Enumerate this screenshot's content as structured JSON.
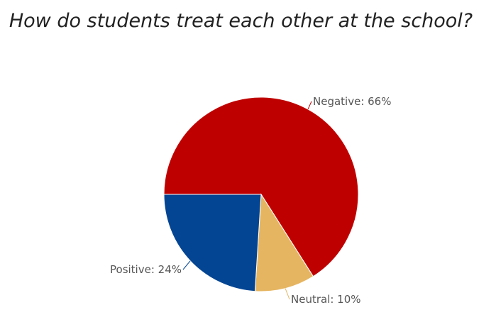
{
  "chart_data": {
    "type": "pie",
    "title": "How do students treat each other at the school?",
    "slices": [
      {
        "label": "Negative",
        "value": 66,
        "display": "Negative: 66%",
        "color": "#bf0000"
      },
      {
        "label": "Neutral",
        "value": 10,
        "display": "Neutral: 10%",
        "color": "#e5b561"
      },
      {
        "label": "Positive",
        "value": 24,
        "display": "Positive: 24%",
        "color": "#034593"
      }
    ],
    "start_direction": "9 o'clock",
    "order": "clockwise"
  }
}
